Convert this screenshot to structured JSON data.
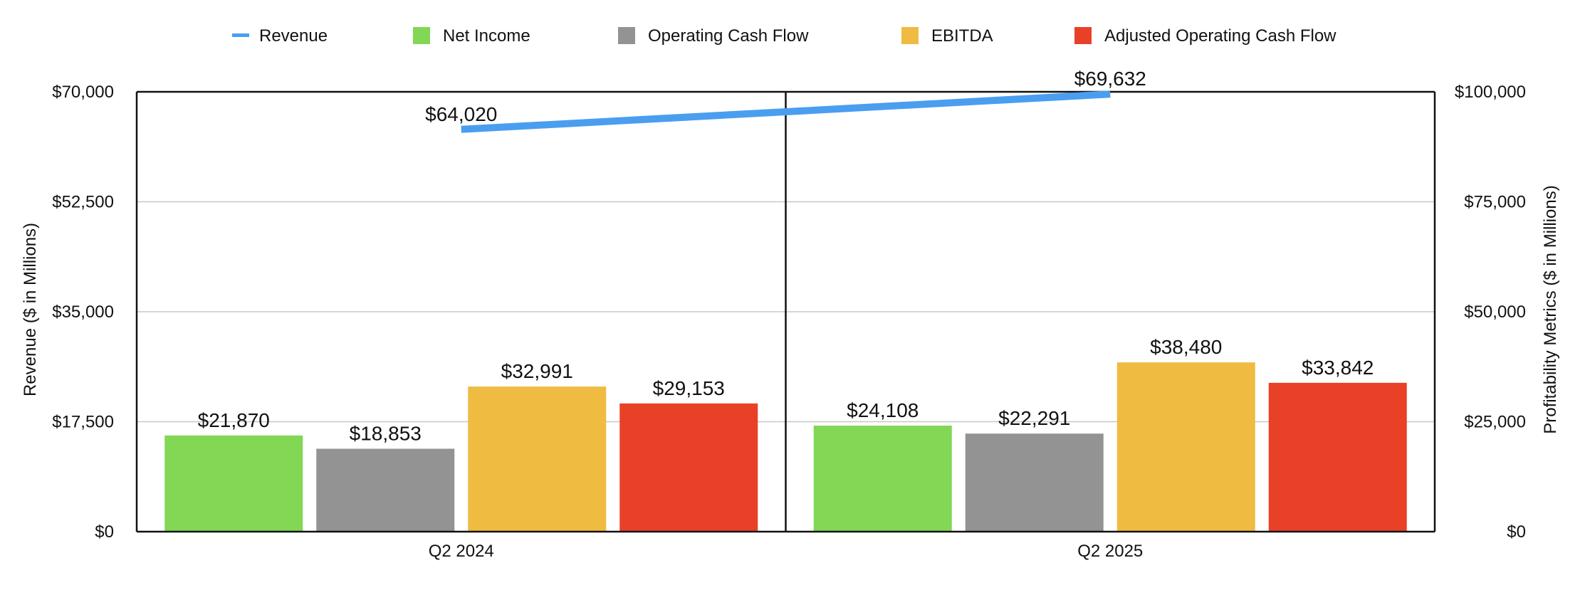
{
  "chart_data": {
    "type": "bar",
    "categories": [
      "Q2 2024",
      "Q2 2025"
    ],
    "line_series": {
      "name": "Revenue",
      "values": [
        64020,
        69632
      ],
      "labels": [
        "$64,020",
        "$69,632"
      ],
      "color": "#4a9eef",
      "axis": "left"
    },
    "bar_series": [
      {
        "name": "Net Income",
        "values": [
          21870,
          24108
        ],
        "labels": [
          "$21,870",
          "$24,108"
        ],
        "color": "#82d755"
      },
      {
        "name": "Operating Cash Flow",
        "values": [
          18853,
          22291
        ],
        "labels": [
          "$18,853",
          "$22,291"
        ],
        "color": "#939393"
      },
      {
        "name": "EBITDA",
        "values": [
          32991,
          38480
        ],
        "labels": [
          "$32,991",
          "$38,480"
        ],
        "color": "#efbb41"
      },
      {
        "name": "Adjusted Operating Cash Flow",
        "values": [
          29153,
          33842
        ],
        "labels": [
          "$29,153",
          "$33,842"
        ],
        "color": "#e94128"
      }
    ],
    "y_left": {
      "label": "Revenue ($ in Millions)",
      "range": [
        0,
        70000
      ],
      "ticks": [
        0,
        17500,
        35000,
        52500,
        70000
      ],
      "tick_labels": [
        "$0",
        "$17,500",
        "$35,000",
        "$52,500",
        "$70,000"
      ]
    },
    "y_right": {
      "label": "Profitability Metrics ($ in Millions)",
      "range": [
        0,
        100000
      ],
      "ticks": [
        0,
        25000,
        50000,
        75000,
        100000
      ],
      "tick_labels": [
        "$0",
        "$25,000",
        "$50,000",
        "$75,000",
        "$100,000"
      ]
    },
    "grid": true,
    "legend_position": "top"
  }
}
